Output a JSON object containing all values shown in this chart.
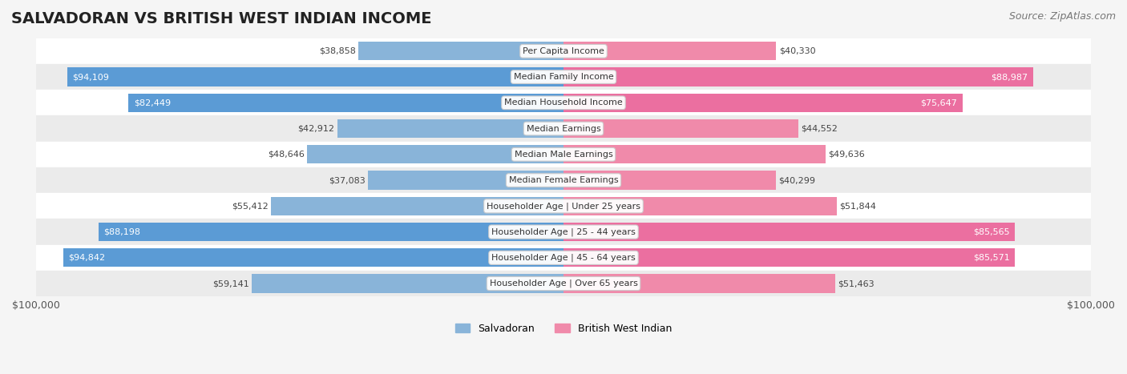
{
  "title": "SALVADORAN VS BRITISH WEST INDIAN INCOME",
  "source": "Source: ZipAtlas.com",
  "categories": [
    "Per Capita Income",
    "Median Family Income",
    "Median Household Income",
    "Median Earnings",
    "Median Male Earnings",
    "Median Female Earnings",
    "Householder Age | Under 25 years",
    "Householder Age | 25 - 44 years",
    "Householder Age | 45 - 64 years",
    "Householder Age | Over 65 years"
  ],
  "salvadoran_values": [
    38858,
    94109,
    82449,
    42912,
    48646,
    37083,
    55412,
    88198,
    94842,
    59141
  ],
  "bwi_values": [
    40330,
    88987,
    75647,
    44552,
    49636,
    40299,
    51844,
    85565,
    85571,
    51463
  ],
  "salvadoran_labels": [
    "$38,858",
    "$94,109",
    "$82,449",
    "$42,912",
    "$48,646",
    "$37,083",
    "$55,412",
    "$88,198",
    "$94,842",
    "$59,141"
  ],
  "bwi_labels": [
    "$40,330",
    "$88,987",
    "$75,647",
    "$44,552",
    "$49,636",
    "$40,299",
    "$51,844",
    "$85,565",
    "$85,571",
    "$51,463"
  ],
  "salvadoran_color": "#89b4d9",
  "bwi_color": "#f08aaa",
  "salvadoran_color_full": "#5b9bd5",
  "bwi_color_full": "#eb6fa0",
  "max_value": 100000,
  "background_color": "#f5f5f5",
  "row_bg_color": "#ffffff",
  "row_alt_bg_color": "#f0f0f0",
  "title_fontsize": 14,
  "label_fontsize": 8.5,
  "source_fontsize": 9,
  "legend_salvadoran": "Salvadoran",
  "legend_bwi": "British West Indian",
  "x_label_left": "$100,000",
  "x_label_right": "$100,000"
}
